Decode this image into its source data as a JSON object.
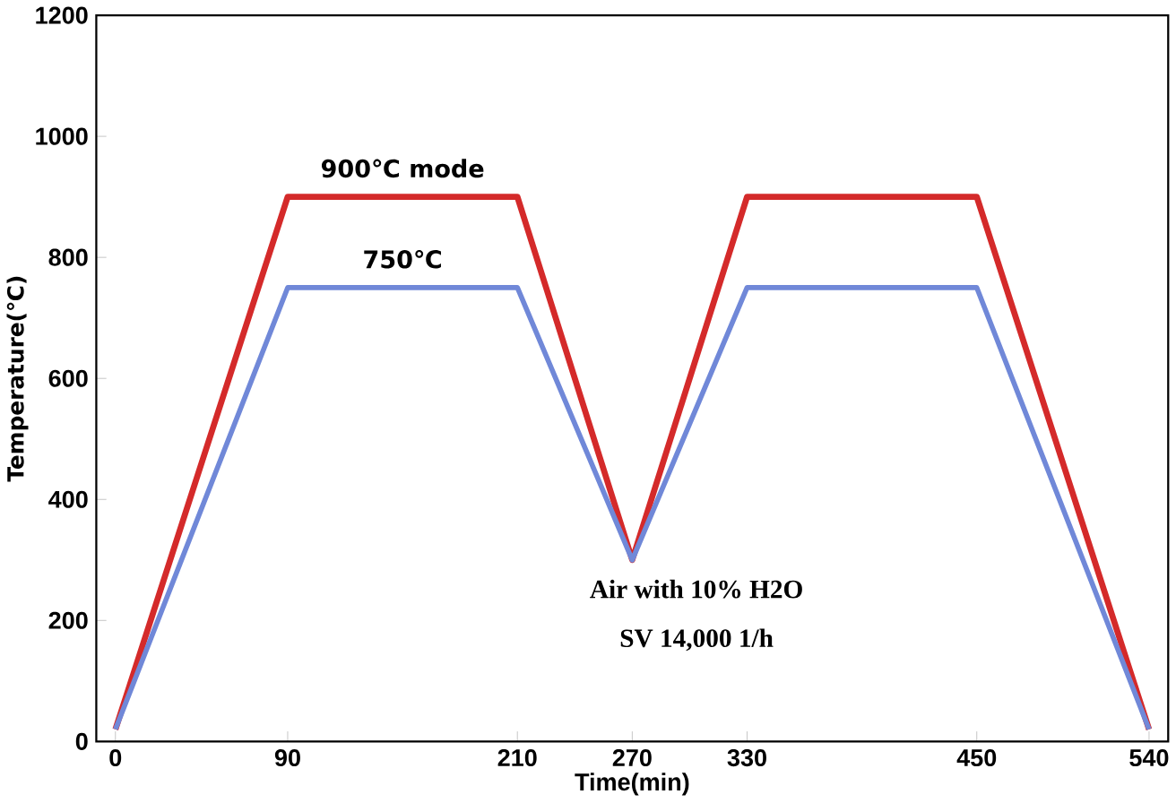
{
  "chart_data": {
    "type": "line",
    "xlabel": "Time(min)",
    "ylabel": "Temperature(℃)",
    "x": [
      0,
      90,
      210,
      270,
      330,
      450,
      540
    ],
    "series": [
      {
        "name": "900℃ mode",
        "color": "#d42a2a",
        "values": [
          20,
          900,
          900,
          300,
          900,
          900,
          20
        ]
      },
      {
        "name": "750℃",
        "color": "#7088d8",
        "values": [
          20,
          750,
          750,
          300,
          750,
          750,
          20
        ]
      }
    ],
    "xlim": [
      -10,
      550
    ],
    "ylim": [
      0,
      1200
    ],
    "xticks": [
      0,
      90,
      210,
      270,
      330,
      450,
      540
    ],
    "yticks": [
      0,
      200,
      400,
      600,
      800,
      1000,
      1200
    ],
    "grid": false,
    "marker": "none",
    "line_style": "solid",
    "annotations": [
      "Air with 10% H2O",
      "SV 14,000 1/h"
    ]
  }
}
